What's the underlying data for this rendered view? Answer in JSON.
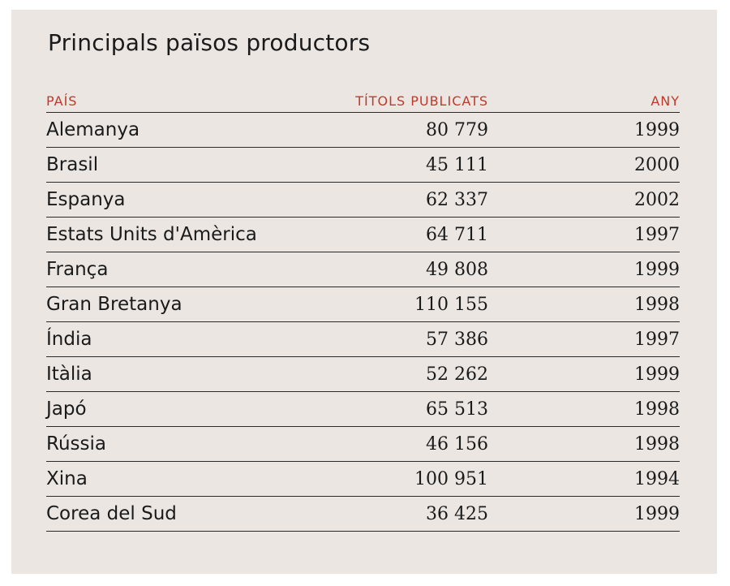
{
  "title": "Principals països productors",
  "table": {
    "headers": [
      "PAÍS",
      "TÍTOLS PUBLICATS",
      "ANY"
    ],
    "rows": [
      {
        "country": "Alemanya",
        "titles": "80 779",
        "year": "1999"
      },
      {
        "country": "Brasil",
        "titles": "45 111",
        "year": "2000"
      },
      {
        "country": "Espanya",
        "titles": "62 337",
        "year": "2002"
      },
      {
        "country": "Estats Units d'Amèrica",
        "titles": "64 711",
        "year": "1997"
      },
      {
        "country": "França",
        "titles": "49 808",
        "year": "1999"
      },
      {
        "country": "Gran Bretanya",
        "titles": "110 155",
        "year": "1998"
      },
      {
        "country": "Índia",
        "titles": "57 386",
        "year": "1997"
      },
      {
        "country": "Itàlia",
        "titles": "52 262",
        "year": "1999"
      },
      {
        "country": "Japó",
        "titles": "65 513",
        "year": "1998"
      },
      {
        "country": "Rússia",
        "titles": "46 156",
        "year": "1998"
      },
      {
        "country": "Xina",
        "titles": "100 951",
        "year": "1994"
      },
      {
        "country": "Corea del Sud",
        "titles": "36 425",
        "year": "1999"
      }
    ]
  },
  "colors": {
    "panel_background": "#ebe6e2",
    "header_text": "#c0392b",
    "body_text": "#1a1a1a",
    "rule": "#2a2a2a"
  }
}
